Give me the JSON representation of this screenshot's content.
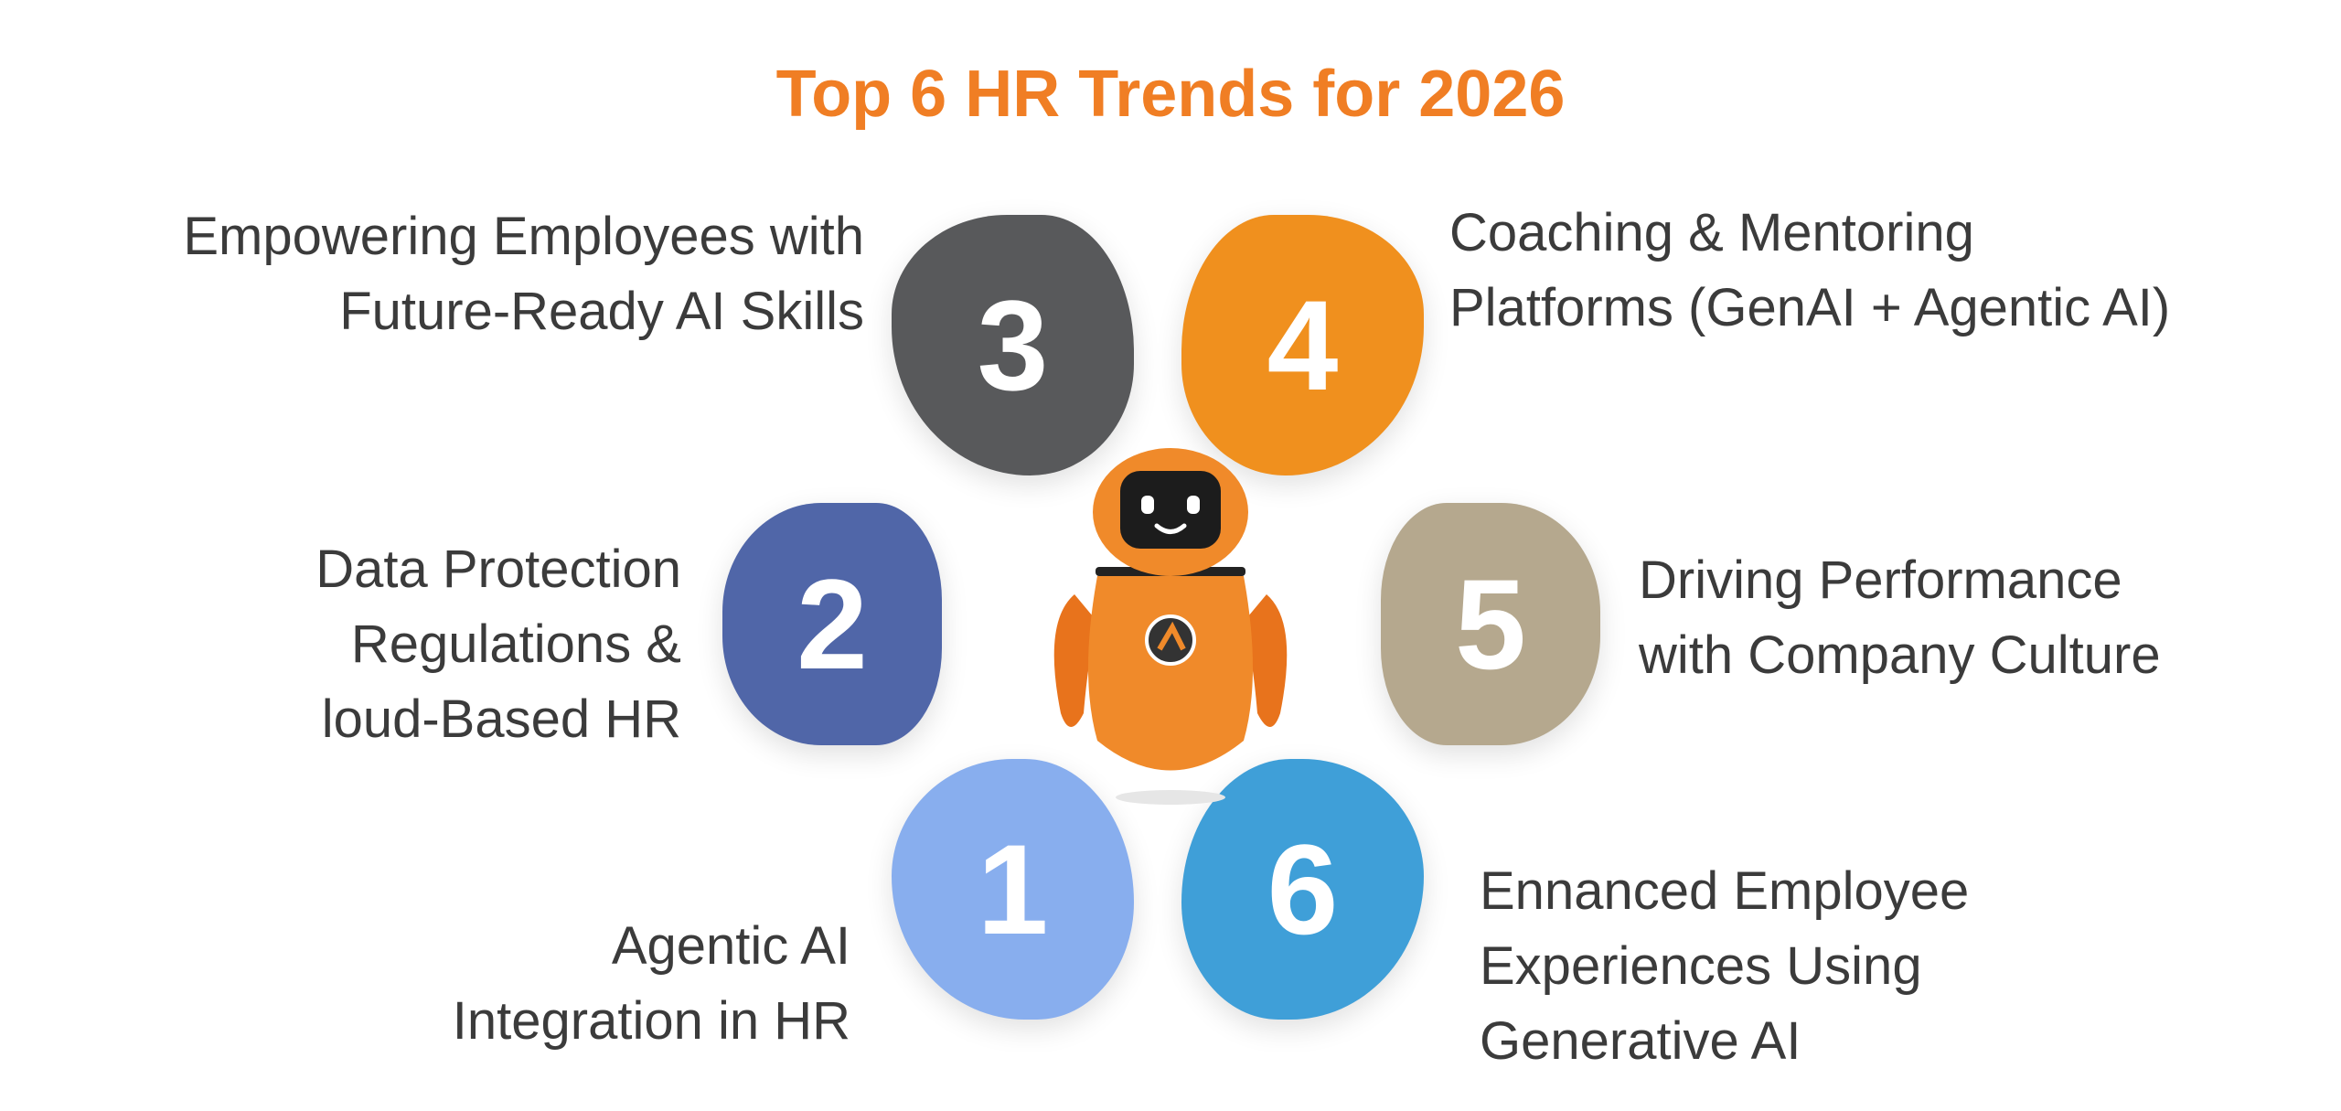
{
  "title": "Top 6 HR Trends for 2026",
  "colors": {
    "title": "#F07E24",
    "trend_1": "#88AEEE",
    "trend_2": "#5066A8",
    "trend_3": "#58595B",
    "trend_4": "#F0901E",
    "trend_5": "#B5A88E",
    "trend_6": "#3F9FD8",
    "robot": "#F07E24"
  },
  "trends": {
    "t1": {
      "number": "1",
      "lines": [
        "Agentic AI",
        "Integration in HR"
      ]
    },
    "t2": {
      "number": "2",
      "lines": [
        "Data Protection",
        "Regulations &",
        "loud-Based HR"
      ]
    },
    "t3": {
      "number": "3",
      "lines": [
        "Empowering Employees with",
        "Future-Ready AI Skills"
      ]
    },
    "t4": {
      "number": "4",
      "lines": [
        "Coaching & Mentoring",
        "Platforms (GenAI + Agentic AI)"
      ]
    },
    "t5": {
      "number": "5",
      "lines": [
        "Driving Performance",
        "with Company Culture"
      ]
    },
    "t6": {
      "number": "6",
      "lines": [
        "Ennanced Employee",
        "Experiences Using",
        "Generative AI"
      ]
    }
  },
  "center_icon": "robot-mascot-icon"
}
